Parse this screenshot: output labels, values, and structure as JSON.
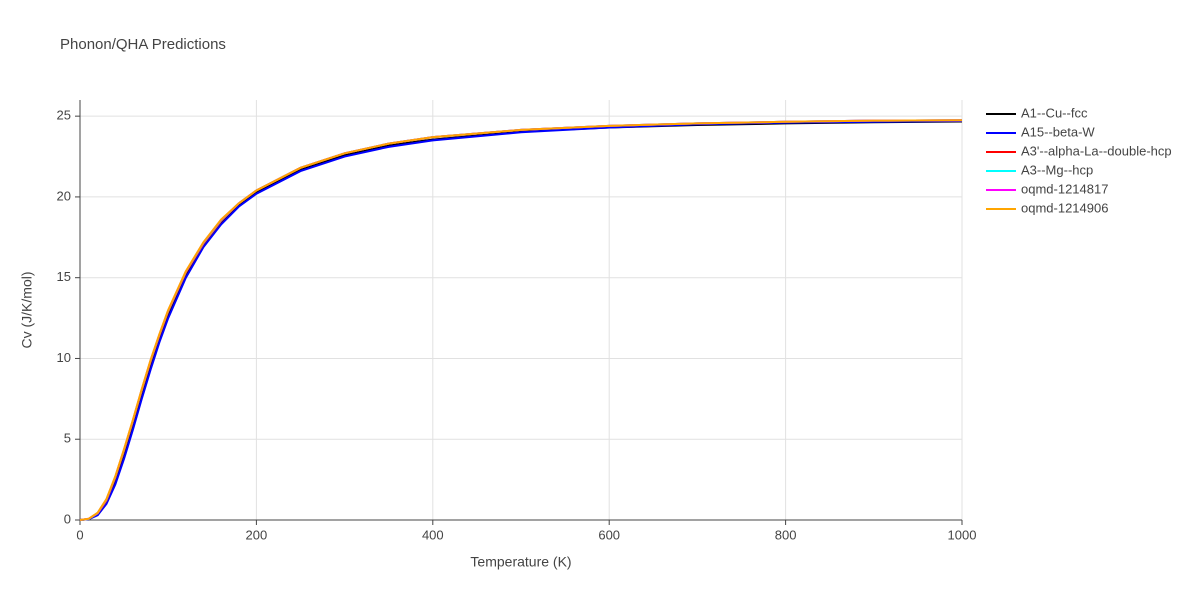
{
  "chart_data": {
    "type": "line",
    "title": "Phonon/QHA Predictions",
    "x_label": "Temperature (K)",
    "y_label": "Cv (J/K/mol)",
    "x": [
      0,
      10,
      20,
      30,
      40,
      50,
      60,
      70,
      80,
      90,
      100,
      120,
      140,
      160,
      180,
      200,
      250,
      300,
      350,
      400,
      500,
      600,
      700,
      800,
      900,
      1000
    ],
    "series": [
      {
        "name": "A1--Cu--fcc",
        "color": "#000000",
        "values": [
          0,
          0.05,
          0.32,
          1.05,
          2.3,
          3.9,
          5.7,
          7.6,
          9.4,
          11.1,
          12.6,
          15.1,
          17.0,
          18.4,
          19.5,
          20.3,
          21.7,
          22.6,
          23.2,
          23.55,
          24.05,
          24.3,
          24.45,
          24.55,
          24.62,
          24.67
        ]
      },
      {
        "name": "A15--beta-W",
        "color": "#0000ff",
        "values": [
          0,
          0.05,
          0.3,
          1.0,
          2.2,
          3.8,
          5.6,
          7.5,
          9.3,
          11.0,
          12.5,
          15.0,
          16.9,
          18.3,
          19.4,
          20.2,
          21.6,
          22.5,
          23.1,
          23.5,
          24.0,
          24.3,
          24.5,
          24.6,
          24.65,
          24.7
        ]
      },
      {
        "name": "A3'--alpha-La--double-hcp",
        "color": "#ff0000",
        "values": [
          0,
          0.07,
          0.4,
          1.2,
          2.6,
          4.3,
          6.1,
          8.0,
          9.8,
          11.4,
          12.9,
          15.3,
          17.1,
          18.5,
          19.6,
          20.4,
          21.8,
          22.7,
          23.3,
          23.7,
          24.15,
          24.4,
          24.55,
          24.65,
          24.72,
          24.75
        ]
      },
      {
        "name": "A3--Mg--hcp",
        "color": "#00ffff",
        "values": [
          0,
          0.07,
          0.42,
          1.25,
          2.65,
          4.35,
          6.15,
          8.05,
          9.85,
          11.45,
          12.95,
          15.35,
          17.15,
          18.55,
          19.6,
          20.4,
          21.8,
          22.7,
          23.3,
          23.7,
          24.15,
          24.4,
          24.55,
          24.65,
          24.72,
          24.75
        ]
      },
      {
        "name": "oqmd-1214817",
        "color": "#ff00ff",
        "values": [
          0,
          0.08,
          0.43,
          1.28,
          2.68,
          4.38,
          6.18,
          8.08,
          9.88,
          11.48,
          12.98,
          15.38,
          17.18,
          18.58,
          19.6,
          20.4,
          21.8,
          22.7,
          23.3,
          23.7,
          24.15,
          24.4,
          24.55,
          24.65,
          24.72,
          24.75
        ]
      },
      {
        "name": "oqmd-1214906",
        "color": "#ffa500",
        "values": [
          0,
          0.08,
          0.45,
          1.3,
          2.7,
          4.4,
          6.2,
          8.1,
          9.9,
          11.5,
          13.0,
          15.4,
          17.2,
          18.6,
          19.6,
          20.4,
          21.8,
          22.7,
          23.3,
          23.7,
          24.15,
          24.4,
          24.55,
          24.65,
          24.72,
          24.75
        ]
      }
    ],
    "xlim": [
      0,
      1000
    ],
    "xticks": [
      0,
      200,
      400,
      600,
      800,
      1000
    ],
    "ylim": [
      0,
      26
    ],
    "yticks": [
      0,
      5,
      10,
      15,
      20,
      25
    ],
    "grid": true
  }
}
